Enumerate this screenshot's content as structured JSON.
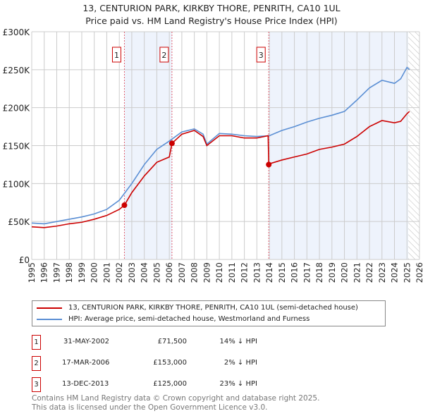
{
  "title": "13, CENTURION PARK, KIRKBY THORE, PENRITH, CA10 1UL",
  "subtitle": "Price paid vs. HM Land Registry's House Price Index (HPI)",
  "chart_data": {
    "type": "line",
    "xlim": [
      1995,
      2026
    ],
    "ylim": [
      0,
      300000
    ],
    "yticks": [
      0,
      50000,
      100000,
      150000,
      200000,
      250000,
      300000
    ],
    "ytick_labels": [
      "£0",
      "£50K",
      "£100K",
      "£150K",
      "£200K",
      "£250K",
      "£300K"
    ],
    "xticks": [
      1995,
      1996,
      1997,
      1998,
      1999,
      2000,
      2001,
      2002,
      2003,
      2004,
      2005,
      2006,
      2007,
      2008,
      2009,
      2010,
      2011,
      2012,
      2013,
      2014,
      2015,
      2016,
      2017,
      2018,
      2019,
      2020,
      2021,
      2022,
      2023,
      2024,
      2025,
      2026
    ],
    "series": [
      {
        "name": "13, CENTURION PARK, KIRKBY THORE, PENRITH, CA10 1UL (semi-detached house)",
        "color": "#cc0000",
        "x": [
          1995,
          1996,
          1997,
          1998,
          1999,
          2000,
          2001,
          2002,
          2002.41,
          2003,
          2004,
          2005,
          2006,
          2006.21,
          2007,
          2008,
          2008.7,
          2009,
          2010,
          2011,
          2012,
          2013,
          2013.9,
          2013.95,
          2014,
          2015,
          2016,
          2017,
          2018,
          2019,
          2020,
          2021,
          2022,
          2023,
          2024,
          2024.5,
          2025,
          2025.2
        ],
        "y": [
          43000,
          42000,
          44000,
          47000,
          49000,
          53000,
          58000,
          66000,
          71500,
          88000,
          110000,
          128000,
          135000,
          153000,
          165000,
          170000,
          162000,
          150000,
          163000,
          163000,
          160000,
          160000,
          163000,
          125000,
          126000,
          131000,
          135000,
          139000,
          145000,
          148000,
          152000,
          162000,
          175000,
          183000,
          180000,
          182000,
          192000,
          195000
        ]
      },
      {
        "name": "HPI: Average price, semi-detached house, Westmorland and Furness",
        "color": "#5b8fd4",
        "x": [
          1995,
          1996,
          1997,
          1998,
          1999,
          2000,
          2001,
          2002,
          2003,
          2004,
          2005,
          2006,
          2007,
          2008,
          2008.7,
          2009,
          2010,
          2011,
          2012,
          2013,
          2014,
          2015,
          2016,
          2017,
          2018,
          2019,
          2020,
          2021,
          2022,
          2023,
          2024,
          2024.5,
          2025,
          2025.2
        ],
        "y": [
          48000,
          47000,
          50000,
          53000,
          56000,
          60000,
          66000,
          78000,
          100000,
          125000,
          145000,
          156000,
          168000,
          172000,
          165000,
          152000,
          166000,
          165000,
          163000,
          162000,
          163000,
          170000,
          175000,
          181000,
          186000,
          190000,
          195000,
          210000,
          226000,
          236000,
          232000,
          238000,
          253000,
          250000
        ]
      }
    ],
    "sales": [
      {
        "id": "1",
        "x": 2002.41,
        "y": 71500,
        "date": "31-MAY-2002",
        "price": "£71,500",
        "hpi": "14% ↓ HPI"
      },
      {
        "id": "2",
        "x": 2006.21,
        "y": 153000,
        "date": "17-MAR-2006",
        "price": "£153,000",
        "hpi": "2% ↓ HPI"
      },
      {
        "id": "3",
        "x": 2013.95,
        "y": 125000,
        "date": "13-DEC-2013",
        "price": "£125,000",
        "hpi": "23% ↓ HPI"
      }
    ],
    "forecast_from": 2025.1
  },
  "legend": {
    "red": "13, CENTURION PARK, KIRKBY THORE, PENRITH, CA10 1UL (semi-detached house)",
    "blue": "HPI: Average price, semi-detached house, Westmorland and Furness"
  },
  "footer": [
    "Contains HM Land Registry data © Crown copyright and database right 2025.",
    "This data is licensed under the Open Government Licence v3.0."
  ]
}
